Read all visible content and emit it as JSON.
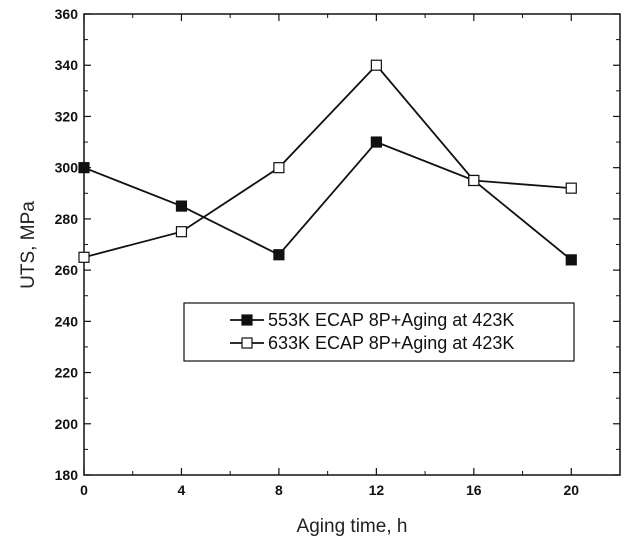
{
  "chart_data": {
    "type": "line",
    "title": "",
    "xlabel": "Aging time, h",
    "ylabel": "UTS, MPa",
    "xlim": [
      0,
      22
    ],
    "ylim": [
      180,
      360
    ],
    "x_ticks": [
      "0",
      "4",
      "8",
      "12",
      "16",
      "20"
    ],
    "y_ticks": [
      "180",
      "200",
      "220",
      "240",
      "260",
      "280",
      "300",
      "320",
      "340",
      "360"
    ],
    "grid": false,
    "legend_position": "center-right",
    "series": [
      {
        "name": "553K ECAP 8P+Aging at 423K",
        "marker": "filled-square",
        "color": "#111111",
        "x": [
          0,
          4,
          8,
          12,
          16,
          20
        ],
        "y": [
          300,
          285,
          266,
          310,
          295,
          264
        ]
      },
      {
        "name": "633K ECAP 8P+Aging at 423K",
        "marker": "open-square",
        "color": "#111111",
        "x": [
          0,
          4,
          8,
          12,
          16,
          20
        ],
        "y": [
          265,
          275,
          300,
          340,
          295,
          292
        ]
      }
    ]
  }
}
